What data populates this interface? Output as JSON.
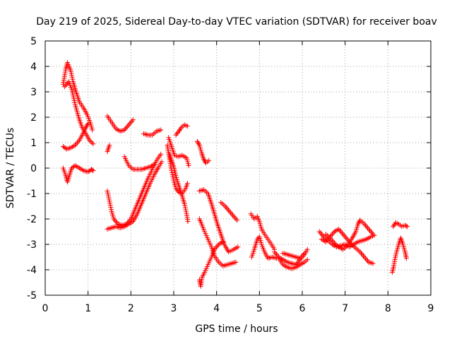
{
  "chart_data": {
    "type": "scatter",
    "title": "Day 219 of 2025, Sidereal Day-to-day VTEC variation (SDTVAR) for receiver boav",
    "xlabel": "GPS time / hours",
    "ylabel": "SDTVAR / TECUs",
    "xlim": [
      0,
      9
    ],
    "ylim": [
      -5,
      5
    ],
    "xticks": [
      "0",
      "1",
      "2",
      "3",
      "4",
      "5",
      "6",
      "7",
      "8",
      "9"
    ],
    "yticks": [
      "-5",
      "-4",
      "-3",
      "-2",
      "-1",
      "0",
      "1",
      "2",
      "3",
      "4",
      "5"
    ],
    "grid": true,
    "marker": "plus",
    "color": "#ff0000",
    "segments": [
      [
        [
          0.42,
          3.3
        ],
        [
          0.48,
          3.9
        ],
        [
          0.52,
          4.15
        ],
        [
          0.56,
          4.0
        ],
        [
          0.6,
          3.8
        ],
        [
          0.65,
          3.4
        ],
        [
          0.72,
          3.0
        ],
        [
          0.8,
          2.6
        ],
        [
          0.9,
          2.35
        ],
        [
          0.98,
          2.1
        ],
        [
          1.05,
          1.8
        ],
        [
          1.1,
          1.5
        ]
      ],
      [
        [
          0.45,
          3.2
        ],
        [
          0.55,
          3.4
        ],
        [
          0.62,
          3.1
        ],
        [
          0.7,
          2.5
        ],
        [
          0.78,
          2.0
        ],
        [
          0.86,
          1.6
        ],
        [
          0.95,
          1.35
        ],
        [
          1.03,
          1.1
        ],
        [
          1.12,
          0.95
        ]
      ],
      [
        [
          0.42,
          0.85
        ],
        [
          0.5,
          0.75
        ],
        [
          0.6,
          0.8
        ],
        [
          0.7,
          0.9
        ],
        [
          0.8,
          1.1
        ],
        [
          0.88,
          1.35
        ],
        [
          0.95,
          1.6
        ],
        [
          1.0,
          1.75
        ]
      ],
      [
        [
          0.42,
          0.0
        ],
        [
          0.48,
          -0.3
        ],
        [
          0.52,
          -0.55
        ],
        [
          0.58,
          -0.2
        ],
        [
          0.62,
          0.0
        ],
        [
          0.7,
          0.1
        ],
        [
          0.8,
          0.0
        ],
        [
          0.9,
          -0.1
        ],
        [
          1.0,
          -0.15
        ],
        [
          1.08,
          -0.05
        ],
        [
          1.12,
          -0.1
        ]
      ],
      [
        [
          1.45,
          2.05
        ],
        [
          1.55,
          1.8
        ],
        [
          1.65,
          1.55
        ],
        [
          1.75,
          1.45
        ],
        [
          1.85,
          1.5
        ],
        [
          1.95,
          1.7
        ],
        [
          2.05,
          1.9
        ]
      ],
      [
        [
          1.45,
          0.65
        ],
        [
          1.5,
          0.9
        ]
      ],
      [
        [
          1.45,
          -0.9
        ],
        [
          1.5,
          -1.3
        ],
        [
          1.55,
          -1.7
        ],
        [
          1.6,
          -2.0
        ],
        [
          1.7,
          -2.2
        ],
        [
          1.8,
          -2.25
        ],
        [
          1.9,
          -2.2
        ],
        [
          2.0,
          -2.0
        ],
        [
          2.1,
          -1.6
        ],
        [
          2.2,
          -1.2
        ],
        [
          2.3,
          -0.8
        ],
        [
          2.4,
          -0.4
        ],
        [
          2.5,
          -0.05
        ],
        [
          2.6,
          0.3
        ],
        [
          2.7,
          0.55
        ]
      ],
      [
        [
          1.45,
          -2.4
        ],
        [
          1.55,
          -2.35
        ],
        [
          1.65,
          -2.3
        ],
        [
          1.75,
          -2.35
        ],
        [
          1.85,
          -2.3
        ],
        [
          1.95,
          -2.2
        ],
        [
          2.05,
          -2.1
        ],
        [
          2.15,
          -1.8
        ],
        [
          2.25,
          -1.4
        ],
        [
          2.35,
          -1.0
        ],
        [
          2.45,
          -0.6
        ],
        [
          2.55,
          -0.25
        ],
        [
          2.65,
          0.05
        ],
        [
          2.72,
          0.25
        ]
      ],
      [
        [
          1.85,
          0.45
        ],
        [
          1.95,
          0.1
        ],
        [
          2.05,
          -0.05
        ],
        [
          2.15,
          -0.05
        ],
        [
          2.25,
          -0.05
        ],
        [
          2.35,
          -0.0
        ],
        [
          2.45,
          0.05
        ],
        [
          2.55,
          0.15
        ]
      ],
      [
        [
          2.3,
          1.35
        ],
        [
          2.4,
          1.3
        ],
        [
          2.5,
          1.3
        ],
        [
          2.6,
          1.45
        ],
        [
          2.7,
          1.5
        ]
      ],
      [
        [
          2.85,
          0.9
        ],
        [
          2.9,
          0.4
        ],
        [
          2.95,
          -0.1
        ],
        [
          3.0,
          -0.5
        ],
        [
          3.05,
          -0.8
        ],
        [
          3.12,
          -0.95
        ],
        [
          3.2,
          -1.0
        ],
        [
          3.28,
          -0.8
        ],
        [
          3.32,
          -0.6
        ]
      ],
      [
        [
          2.9,
          0.55
        ],
        [
          2.95,
          0.3
        ],
        [
          3.0,
          0.05
        ],
        [
          3.05,
          -0.3
        ],
        [
          3.1,
          -0.6
        ],
        [
          3.18,
          -1.0
        ],
        [
          3.25,
          -1.4
        ],
        [
          3.3,
          -1.8
        ],
        [
          3.33,
          -2.1
        ]
      ],
      [
        [
          2.88,
          1.2
        ],
        [
          2.95,
          0.85
        ],
        [
          3.02,
          0.5
        ],
        [
          3.1,
          0.45
        ],
        [
          3.2,
          0.5
        ],
        [
          3.3,
          0.4
        ],
        [
          3.35,
          0.1
        ]
      ],
      [
        [
          3.05,
          1.3
        ],
        [
          3.12,
          1.45
        ],
        [
          3.18,
          1.6
        ],
        [
          3.25,
          1.7
        ],
        [
          3.32,
          1.65
        ]
      ],
      [
        [
          3.55,
          1.05
        ],
        [
          3.6,
          0.9
        ],
        [
          3.65,
          0.6
        ],
        [
          3.7,
          0.35
        ],
        [
          3.75,
          0.2
        ],
        [
          3.82,
          0.3
        ]
      ],
      [
        [
          3.6,
          -0.9
        ],
        [
          3.7,
          -0.85
        ],
        [
          3.8,
          -1.0
        ],
        [
          3.88,
          -1.4
        ],
        [
          3.95,
          -1.8
        ],
        [
          4.02,
          -2.2
        ],
        [
          4.1,
          -2.6
        ],
        [
          4.18,
          -3.0
        ],
        [
          4.28,
          -3.3
        ],
        [
          4.4,
          -3.2
        ],
        [
          4.5,
          -3.1
        ]
      ],
      [
        [
          3.6,
          -2.0
        ],
        [
          3.65,
          -2.2
        ],
        [
          3.72,
          -2.5
        ],
        [
          3.8,
          -2.8
        ],
        [
          3.88,
          -3.1
        ],
        [
          3.95,
          -3.45
        ],
        [
          4.05,
          -3.7
        ],
        [
          4.15,
          -3.85
        ],
        [
          4.25,
          -3.8
        ],
        [
          4.35,
          -3.75
        ],
        [
          4.45,
          -3.7
        ]
      ],
      [
        [
          3.6,
          -4.4
        ],
        [
          3.63,
          -4.65
        ],
        [
          3.66,
          -4.3
        ],
        [
          3.72,
          -4.1
        ],
        [
          3.8,
          -3.8
        ],
        [
          3.88,
          -3.5
        ],
        [
          3.95,
          -3.2
        ],
        [
          4.05,
          -3.0
        ],
        [
          4.15,
          -2.9
        ]
      ],
      [
        [
          4.1,
          -1.35
        ],
        [
          4.2,
          -1.5
        ],
        [
          4.3,
          -1.7
        ],
        [
          4.4,
          -1.9
        ],
        [
          4.48,
          -2.05
        ]
      ],
      [
        [
          4.8,
          -1.8
        ],
        [
          4.88,
          -2.0
        ],
        [
          4.95,
          -1.9
        ],
        [
          5.0,
          -2.1
        ],
        [
          5.05,
          -2.4
        ],
        [
          5.12,
          -2.6
        ],
        [
          5.2,
          -2.8
        ],
        [
          5.28,
          -3.0
        ],
        [
          5.35,
          -3.2
        ]
      ],
      [
        [
          4.82,
          -3.5
        ],
        [
          4.88,
          -3.2
        ],
        [
          4.95,
          -2.8
        ],
        [
          5.0,
          -2.7
        ],
        [
          5.05,
          -3.0
        ],
        [
          5.12,
          -3.3
        ],
        [
          5.2,
          -3.55
        ],
        [
          5.3,
          -3.5
        ],
        [
          5.4,
          -3.55
        ]
      ],
      [
        [
          5.35,
          -3.3
        ],
        [
          5.45,
          -3.5
        ],
        [
          5.55,
          -3.6
        ],
        [
          5.65,
          -3.7
        ],
        [
          5.75,
          -3.75
        ],
        [
          5.85,
          -3.8
        ],
        [
          5.95,
          -3.6
        ],
        [
          6.05,
          -3.4
        ],
        [
          6.12,
          -3.2
        ]
      ],
      [
        [
          5.45,
          -3.55
        ],
        [
          5.55,
          -3.8
        ],
        [
          5.65,
          -3.9
        ],
        [
          5.75,
          -3.95
        ],
        [
          5.85,
          -3.9
        ],
        [
          5.95,
          -3.8
        ],
        [
          6.05,
          -3.7
        ],
        [
          6.12,
          -3.6
        ]
      ],
      [
        [
          5.55,
          -3.35
        ],
        [
          5.65,
          -3.4
        ],
        [
          5.75,
          -3.45
        ],
        [
          5.85,
          -3.5
        ],
        [
          5.95,
          -3.55
        ],
        [
          6.05,
          -3.35
        ]
      ],
      [
        [
          6.4,
          -2.5
        ],
        [
          6.5,
          -2.7
        ],
        [
          6.6,
          -2.85
        ],
        [
          6.7,
          -3.0
        ],
        [
          6.8,
          -3.1
        ],
        [
          6.9,
          -3.05
        ],
        [
          7.0,
          -3.0
        ],
        [
          7.1,
          -3.1
        ],
        [
          7.2,
          -3.0
        ],
        [
          7.3,
          -2.9
        ],
        [
          7.4,
          -2.85
        ],
        [
          7.5,
          -2.8
        ],
        [
          7.6,
          -2.7
        ],
        [
          7.68,
          -2.65
        ]
      ],
      [
        [
          6.45,
          -2.8
        ],
        [
          6.55,
          -2.9
        ],
        [
          6.65,
          -2.7
        ],
        [
          6.75,
          -2.5
        ],
        [
          6.85,
          -2.4
        ],
        [
          6.95,
          -2.6
        ],
        [
          7.05,
          -2.8
        ],
        [
          7.15,
          -3.0
        ],
        [
          7.25,
          -3.15
        ],
        [
          7.35,
          -3.3
        ],
        [
          7.45,
          -3.5
        ],
        [
          7.55,
          -3.7
        ],
        [
          7.65,
          -3.75
        ]
      ],
      [
        [
          6.55,
          -2.6
        ],
        [
          6.65,
          -2.75
        ],
        [
          6.75,
          -2.95
        ],
        [
          6.85,
          -3.1
        ],
        [
          6.95,
          -3.2
        ],
        [
          7.05,
          -3.05
        ],
        [
          7.15,
          -2.8
        ],
        [
          7.25,
          -2.5
        ],
        [
          7.3,
          -2.2
        ],
        [
          7.35,
          -2.05
        ],
        [
          7.45,
          -2.2
        ],
        [
          7.55,
          -2.4
        ],
        [
          7.65,
          -2.6
        ]
      ],
      [
        [
          8.1,
          -4.1
        ],
        [
          8.13,
          -3.9
        ],
        [
          8.16,
          -3.6
        ],
        [
          8.2,
          -3.3
        ],
        [
          8.25,
          -3.0
        ],
        [
          8.3,
          -2.75
        ],
        [
          8.35,
          -3.0
        ],
        [
          8.4,
          -3.3
        ],
        [
          8.43,
          -3.55
        ]
      ],
      [
        [
          8.12,
          -2.3
        ],
        [
          8.18,
          -2.15
        ],
        [
          8.25,
          -2.2
        ],
        [
          8.32,
          -2.3
        ],
        [
          8.4,
          -2.25
        ],
        [
          8.45,
          -2.3
        ]
      ]
    ]
  }
}
